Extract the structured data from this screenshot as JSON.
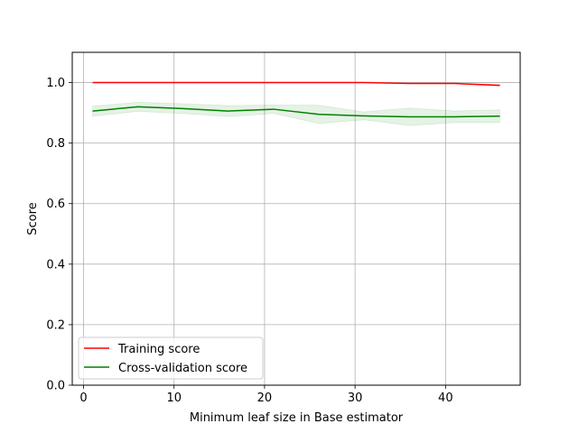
{
  "chart_data": {
    "type": "line",
    "title": "",
    "xlabel": "Minimum leaf size in Base estimator",
    "ylabel": "Score",
    "xlim": [
      -1.25,
      48.25
    ],
    "ylim": [
      0.0,
      1.1
    ],
    "xticks": [
      0,
      10,
      20,
      30,
      40
    ],
    "yticks": [
      0.0,
      0.2,
      0.4,
      0.6,
      0.8,
      1.0
    ],
    "xtick_labels": [
      "0",
      "10",
      "20",
      "30",
      "40"
    ],
    "ytick_labels": [
      "0.0",
      "0.2",
      "0.4",
      "0.6",
      "0.8",
      "1.0"
    ],
    "grid": true,
    "legend_position": "lower-left",
    "x": [
      1,
      6,
      11,
      16,
      21,
      26,
      31,
      36,
      41,
      46
    ],
    "series": [
      {
        "name": "Training score",
        "color": "#ff0000",
        "values": [
          1.0,
          1.0,
          1.0,
          1.0,
          1.0,
          1.0,
          1.0,
          0.997,
          0.997,
          0.991
        ],
        "band_lower": [
          1.0,
          1.0,
          1.0,
          1.0,
          1.0,
          1.0,
          1.0,
          0.996,
          0.996,
          0.988
        ],
        "band_upper": [
          1.0,
          1.0,
          1.0,
          1.0,
          1.0,
          1.0,
          1.0,
          0.998,
          0.998,
          0.994
        ]
      },
      {
        "name": "Cross-validation score",
        "color": "#008000",
        "band_color": "#008000",
        "values": [
          0.906,
          0.92,
          0.914,
          0.906,
          0.912,
          0.895,
          0.89,
          0.887,
          0.887,
          0.889
        ],
        "band_lower": [
          0.889,
          0.905,
          0.898,
          0.888,
          0.898,
          0.865,
          0.877,
          0.858,
          0.868,
          0.868
        ],
        "band_upper": [
          0.922,
          0.935,
          0.93,
          0.924,
          0.926,
          0.925,
          0.903,
          0.916,
          0.906,
          0.91
        ]
      }
    ]
  }
}
